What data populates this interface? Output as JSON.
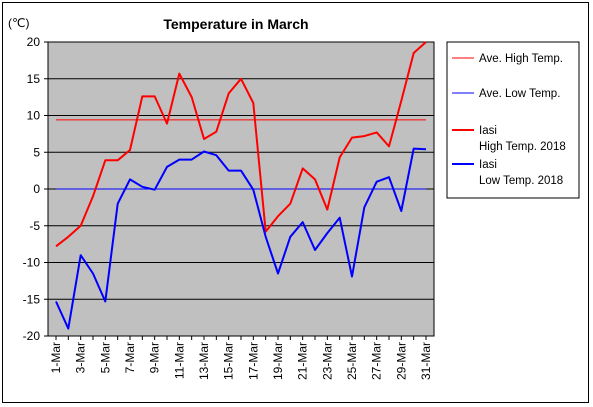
{
  "chart_data": {
    "type": "line",
    "title": "Temperature in March",
    "unit_label": "(℃)",
    "xlabel": "",
    "ylabel": "",
    "ylim": [
      -20,
      20
    ],
    "yticks": [
      20,
      15,
      10,
      5,
      0,
      -5,
      -10,
      -15,
      -20
    ],
    "grid": true,
    "legend_position": "right",
    "categories": [
      "1-Mar",
      "2-Mar",
      "3-Mar",
      "4-Mar",
      "5-Mar",
      "6-Mar",
      "7-Mar",
      "8-Mar",
      "9-Mar",
      "10-Mar",
      "11-Mar",
      "12-Mar",
      "13-Mar",
      "14-Mar",
      "15-Mar",
      "16-Mar",
      "17-Mar",
      "18-Mar",
      "19-Mar",
      "20-Mar",
      "21-Mar",
      "22-Mar",
      "23-Mar",
      "24-Mar",
      "25-Mar",
      "26-Mar",
      "27-Mar",
      "28-Mar",
      "29-Mar",
      "30-Mar",
      "31-Mar"
    ],
    "tick_labels": [
      "1-Mar",
      "3-Mar",
      "5-Mar",
      "7-Mar",
      "9-Mar",
      "11-Mar",
      "13-Mar",
      "15-Mar",
      "17-Mar",
      "19-Mar",
      "21-Mar",
      "23-Mar",
      "25-Mar",
      "27-Mar",
      "29-Mar",
      "31-Mar"
    ],
    "series": [
      {
        "name": "Ave. High Temp.",
        "color": "#ff0000",
        "width": 1,
        "values": [
          9.4,
          9.4,
          9.4,
          9.4,
          9.4,
          9.4,
          9.4,
          9.4,
          9.4,
          9.4,
          9.4,
          9.4,
          9.4,
          9.4,
          9.4,
          9.4,
          9.4,
          9.4,
          9.4,
          9.4,
          9.4,
          9.4,
          9.4,
          9.4,
          9.4,
          9.4,
          9.4,
          9.4,
          9.4,
          9.4,
          9.4
        ]
      },
      {
        "name": "Ave. Low Temp.",
        "color": "#0000ff",
        "width": 1,
        "values": [
          0,
          0,
          0,
          0,
          0,
          0,
          0,
          0,
          0,
          0,
          0,
          0,
          0,
          0,
          0,
          0,
          0,
          0,
          0,
          0,
          0,
          0,
          0,
          0,
          0,
          0,
          0,
          0,
          0,
          0,
          0
        ]
      },
      {
        "name": "Iasi\nHigh Temp. 2018",
        "color": "#ff0000",
        "width": 2,
        "values": [
          -7.8,
          -6.5,
          -5,
          -1,
          3.9,
          3.9,
          5.3,
          12.6,
          12.6,
          8.9,
          15.7,
          12.5,
          6.8,
          7.8,
          13,
          15,
          11.7,
          -5.8,
          -3.7,
          -2,
          2.8,
          1.3,
          -2.8,
          4.3,
          7,
          7.2,
          7.7,
          5.8,
          12,
          18.5,
          20
        ]
      },
      {
        "name": "Iasi\nLow Temp. 2018",
        "color": "#0000ff",
        "width": 2,
        "values": [
          -15.3,
          -19,
          -9,
          -11.5,
          -15.3,
          -2,
          1.3,
          0.3,
          -0.1,
          3,
          4,
          4,
          5.1,
          4.6,
          2.5,
          2.5,
          -0.1,
          -6.5,
          -11.5,
          -6.5,
          -4.5,
          -8.3,
          -6,
          -3.9,
          -11.9,
          -2.5,
          1,
          1.6,
          -3,
          5.5,
          5.4
        ]
      }
    ]
  }
}
